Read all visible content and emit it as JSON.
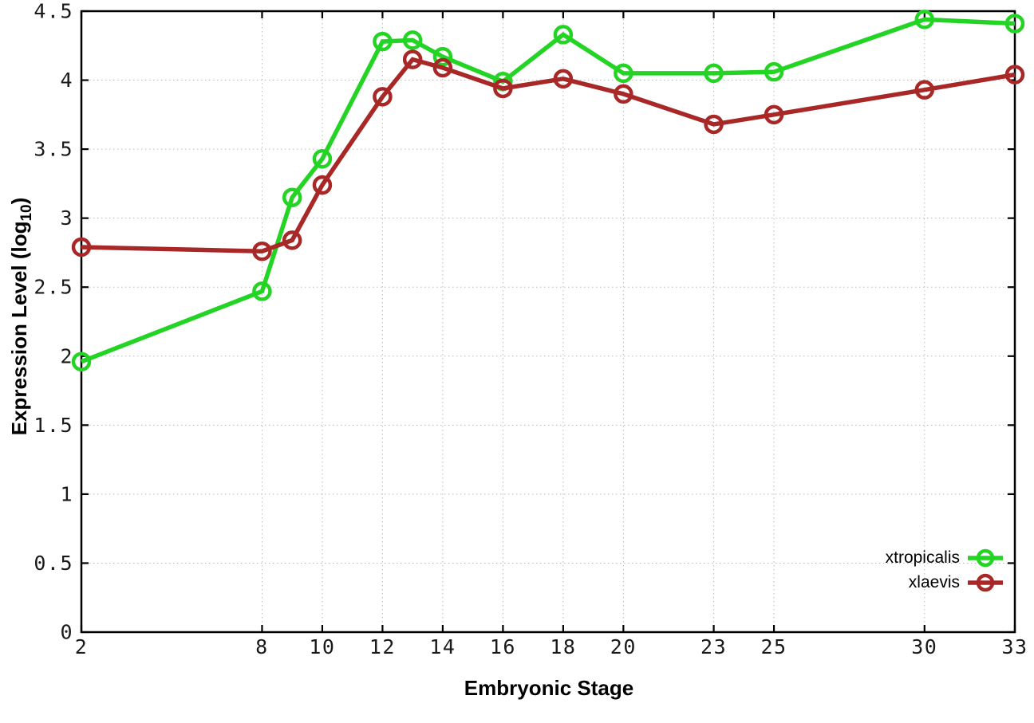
{
  "chart_data": {
    "type": "line",
    "title": "",
    "xlabel": "Embryonic Stage",
    "ylabel": "Expression Level (log10)",
    "ylabel_rich": {
      "prefix": "Expression Level (log",
      "subscript": "10",
      "suffix": ")"
    },
    "xlim": [
      2,
      33
    ],
    "ylim": [
      0,
      4.5
    ],
    "grid": true,
    "legend_position": "inside bottom-right",
    "x_ticks": [
      2,
      8,
      10,
      12,
      14,
      16,
      18,
      20,
      23,
      25,
      30,
      33
    ],
    "x_tick_labels": [
      "2",
      "8",
      "10",
      "12",
      "14",
      "16",
      "18",
      "20",
      "23",
      "25",
      "30",
      "33"
    ],
    "y_ticks": [
      0,
      0.5,
      1,
      1.5,
      2,
      2.5,
      3,
      3.5,
      4,
      4.5
    ],
    "y_tick_labels": [
      "0",
      "0.5",
      "1",
      "1.5",
      "2",
      "2.5",
      "3",
      "3.5",
      "4",
      "4.5"
    ],
    "x": [
      2,
      8,
      9,
      10,
      12,
      13,
      14,
      16,
      18,
      20,
      23,
      25,
      30,
      33
    ],
    "series": [
      {
        "name": "xtropicalis",
        "color": "#24d424",
        "values": [
          1.96,
          2.47,
          3.15,
          3.43,
          4.28,
          4.29,
          4.17,
          3.99,
          4.33,
          4.05,
          4.05,
          4.06,
          4.44,
          4.41
        ]
      },
      {
        "name": "xlaevis",
        "color": "#a82828",
        "values": [
          2.79,
          2.76,
          2.84,
          3.24,
          3.88,
          4.15,
          4.09,
          3.94,
          4.01,
          3.9,
          3.68,
          3.75,
          3.93,
          4.04
        ]
      }
    ],
    "axis_color": "#000000",
    "grid_color": "#bbbbbb",
    "tick_label_color": "#1a1a1a"
  }
}
